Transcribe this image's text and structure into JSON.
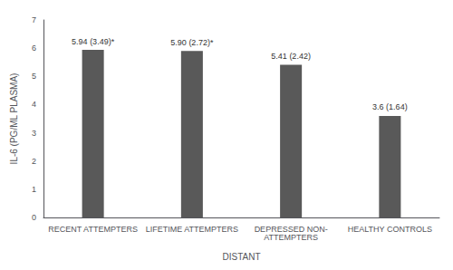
{
  "chart_data": {
    "type": "bar",
    "categories": [
      "RECENT ATTEMPTERS",
      "LIFETIME ATTEMPTERS",
      "DEPRESSED NON-\nATTEMPTERS",
      "HEALTHY CONTROLS"
    ],
    "values": [
      5.94,
      5.9,
      5.41,
      3.6
    ],
    "value_labels": [
      "5.94 (3.49)*",
      "5.90 (2.72)*",
      "5.41 (2.42)",
      "3.6 (1.64)"
    ],
    "data_labels": true,
    "color": "#595959",
    "xlabel": "DISTANT",
    "ylabel": "IL-6 (PG/ML PLASMA)",
    "ylim": [
      0,
      7
    ],
    "yticks": [
      0,
      1,
      2,
      3,
      4,
      5,
      6,
      7
    ],
    "grid": false
  }
}
